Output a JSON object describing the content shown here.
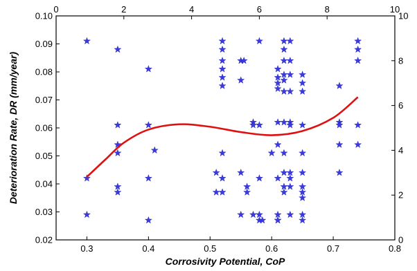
{
  "chart_data": {
    "type": "scatter",
    "xlabel": "Corrosivity Potential, CoP",
    "ylabel": "Deterioration Rate, DR (mm/year)",
    "xlim": [
      0.25,
      0.8
    ],
    "ylim": [
      0.02,
      0.1
    ],
    "x_ticks": [
      "0.3",
      "0.4",
      "0.5",
      "0.6",
      "0.7",
      "0.8"
    ],
    "y_ticks": [
      "0.02",
      "0.03",
      "0.04",
      "0.05",
      "0.06",
      "0.07",
      "0.08",
      "0.09",
      "0.10"
    ],
    "top_axis": {
      "range": [
        0,
        10
      ],
      "ticks": [
        "0",
        "2",
        "4",
        "6",
        "8",
        "10"
      ]
    },
    "right_axis": {
      "range": [
        0,
        10
      ],
      "ticks": [
        "0",
        "2",
        "4",
        "6",
        "8",
        "10"
      ]
    },
    "grid": false,
    "legend": "none",
    "colors": {
      "points": "#3a3ae0",
      "fit": "#e01010"
    },
    "series": [
      {
        "type": "scatter",
        "marker": "star",
        "x": [
          0.3,
          0.3,
          0.3,
          0.35,
          0.35,
          0.35,
          0.35,
          0.35,
          0.35,
          0.4,
          0.4,
          0.4,
          0.4,
          0.41,
          0.51,
          0.52,
          0.52,
          0.52,
          0.52,
          0.52,
          0.52,
          0.52,
          0.52,
          0.52,
          0.55,
          0.55,
          0.555,
          0.56,
          0.51,
          0.55,
          0.55,
          0.56,
          0.57,
          0.57,
          0.57,
          0.58,
          0.58,
          0.58,
          0.58,
          0.58,
          0.585,
          0.6,
          0.61,
          0.61,
          0.61,
          0.61,
          0.61,
          0.61,
          0.61,
          0.61,
          0.61,
          0.61,
          0.62,
          0.62,
          0.62,
          0.62,
          0.62,
          0.62,
          0.62,
          0.62,
          0.62,
          0.62,
          0.62,
          0.63,
          0.63,
          0.63,
          0.63,
          0.63,
          0.63,
          0.63,
          0.63,
          0.63,
          0.63,
          0.65,
          0.65,
          0.65,
          0.65,
          0.65,
          0.65,
          0.65,
          0.65,
          0.65,
          0.65,
          0.65,
          0.71,
          0.71,
          0.71,
          0.71,
          0.71,
          0.74,
          0.74,
          0.74,
          0.74,
          0.74
        ],
        "y": [
          0.091,
          0.042,
          0.029,
          0.088,
          0.061,
          0.054,
          0.051,
          0.039,
          0.037,
          0.081,
          0.061,
          0.042,
          0.027,
          0.052,
          0.044,
          0.091,
          0.088,
          0.084,
          0.081,
          0.078,
          0.075,
          0.051,
          0.042,
          0.037,
          0.084,
          0.077,
          0.084,
          0.039,
          0.037,
          0.044,
          0.029,
          0.037,
          0.062,
          0.061,
          0.029,
          0.091,
          0.061,
          0.042,
          0.029,
          0.027,
          0.027,
          0.051,
          0.081,
          0.078,
          0.076,
          0.074,
          0.062,
          0.054,
          0.042,
          0.029,
          0.027,
          0.027,
          0.091,
          0.088,
          0.084,
          0.079,
          0.077,
          0.073,
          0.062,
          0.051,
          0.044,
          0.039,
          0.037,
          0.091,
          0.084,
          0.079,
          0.073,
          0.062,
          0.061,
          0.044,
          0.042,
          0.039,
          0.029,
          0.079,
          0.076,
          0.073,
          0.061,
          0.051,
          0.044,
          0.039,
          0.037,
          0.035,
          0.029,
          0.027,
          0.075,
          0.062,
          0.061,
          0.054,
          0.044,
          0.091,
          0.088,
          0.084,
          0.061,
          0.054
        ]
      },
      {
        "type": "line",
        "x": [
          0.3,
          0.33,
          0.36,
          0.4,
          0.45,
          0.5,
          0.55,
          0.6,
          0.65,
          0.7,
          0.74
        ],
        "y": [
          0.0425,
          0.0487,
          0.0547,
          0.0594,
          0.0613,
          0.0604,
          0.0585,
          0.0574,
          0.0589,
          0.0636,
          0.071
        ]
      }
    ]
  }
}
